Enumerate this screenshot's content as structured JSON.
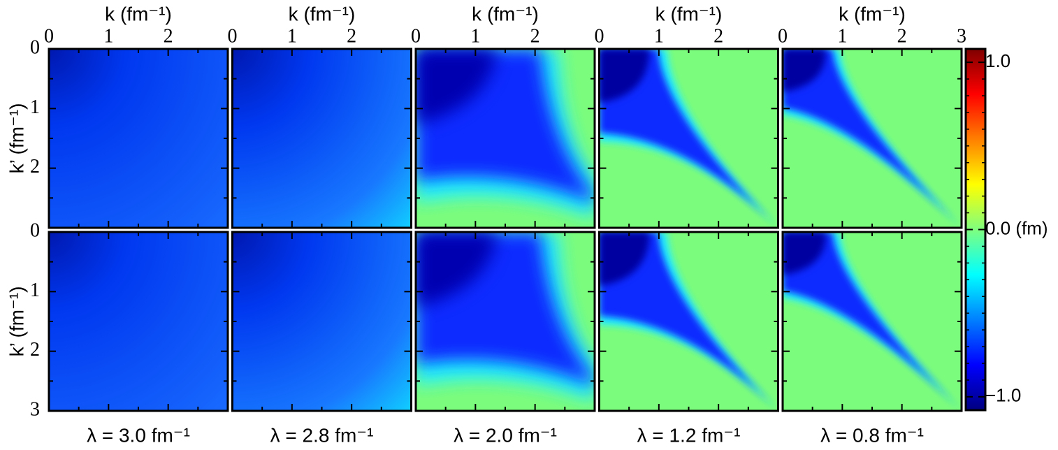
{
  "chart_data": {
    "type": "heatmap",
    "x_label": "k (fm⁻¹)",
    "y_label": "k’ (fm⁻¹)",
    "xlim": [
      0,
      3
    ],
    "ylim": [
      0,
      3
    ],
    "y_inverted": true,
    "xticks": [
      0,
      1,
      2,
      3
    ],
    "yticks": [
      0,
      1,
      2,
      3
    ],
    "panels": [
      "λ = 3.0 fm⁻¹",
      "λ = 2.8 fm⁻¹",
      "λ = 2.0 fm⁻¹",
      "λ = 1.2 fm⁻¹",
      "λ = 0.8 fm⁻¹"
    ],
    "colorbar": {
      "lim": [
        -1.08,
        1.08
      ],
      "ticks": [
        {
          "value": 1,
          "label": "1.0"
        },
        {
          "value": 0,
          "label": "0.0 (fm)"
        },
        {
          "value": -1,
          "label": "−1.0"
        }
      ],
      "colormap": [
        "#00007f",
        "#0000ff",
        "#007fff",
        "#00ffff",
        "#7fff7f",
        "#ffff00",
        "#ff7f00",
        "#ff0000",
        "#7f0000"
      ]
    }
  }
}
